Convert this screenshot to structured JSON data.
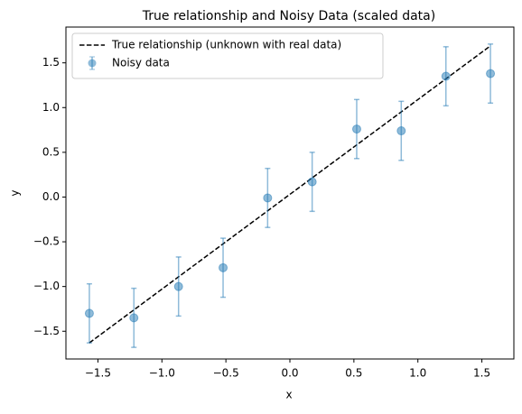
{
  "chart_data": {
    "type": "scatter",
    "title": "True relationship and Noisy Data (scaled data)",
    "xlabel": "x",
    "ylabel": "y",
    "xlim": [
      -1.75,
      1.75
    ],
    "ylim": [
      -1.81,
      1.9
    ],
    "xticks": [
      {
        "value": -1.5,
        "label": "−1.5"
      },
      {
        "value": -1.0,
        "label": "−1.0"
      },
      {
        "value": -0.5,
        "label": "−0.5"
      },
      {
        "value": 0.0,
        "label": "0.0"
      },
      {
        "value": 0.5,
        "label": "0.5"
      },
      {
        "value": 1.0,
        "label": "1.0"
      },
      {
        "value": 1.5,
        "label": "1.5"
      }
    ],
    "yticks": [
      {
        "value": -1.5,
        "label": "−1.5"
      },
      {
        "value": -1.0,
        "label": "−1.0"
      },
      {
        "value": -0.5,
        "label": "−0.5"
      },
      {
        "value": 0.0,
        "label": "0.0"
      },
      {
        "value": 0.5,
        "label": "0.5"
      },
      {
        "value": 1.0,
        "label": "1.0"
      },
      {
        "value": 1.5,
        "label": "1.5"
      }
    ],
    "legend": "upper left",
    "series": [
      {
        "name": "True relationship (unknown with real data)",
        "type": "line",
        "color": "#000000",
        "dashed": true,
        "x": [
          -1.567,
          1.567
        ],
        "y": [
          -1.63,
          1.69
        ]
      },
      {
        "name": "Noisy data",
        "type": "errorbar",
        "color": "#1f77b4",
        "x": [
          -1.567,
          -1.219,
          -0.87,
          -0.522,
          -0.174,
          0.174,
          0.522,
          0.87,
          1.219,
          1.567
        ],
        "y": [
          -1.3,
          -1.35,
          -1.0,
          -0.79,
          -0.01,
          0.17,
          0.76,
          0.74,
          1.35,
          1.38
        ],
        "yerr": [
          0.33,
          0.33,
          0.33,
          0.33,
          0.33,
          0.33,
          0.33,
          0.33,
          0.33,
          0.33
        ]
      }
    ]
  }
}
